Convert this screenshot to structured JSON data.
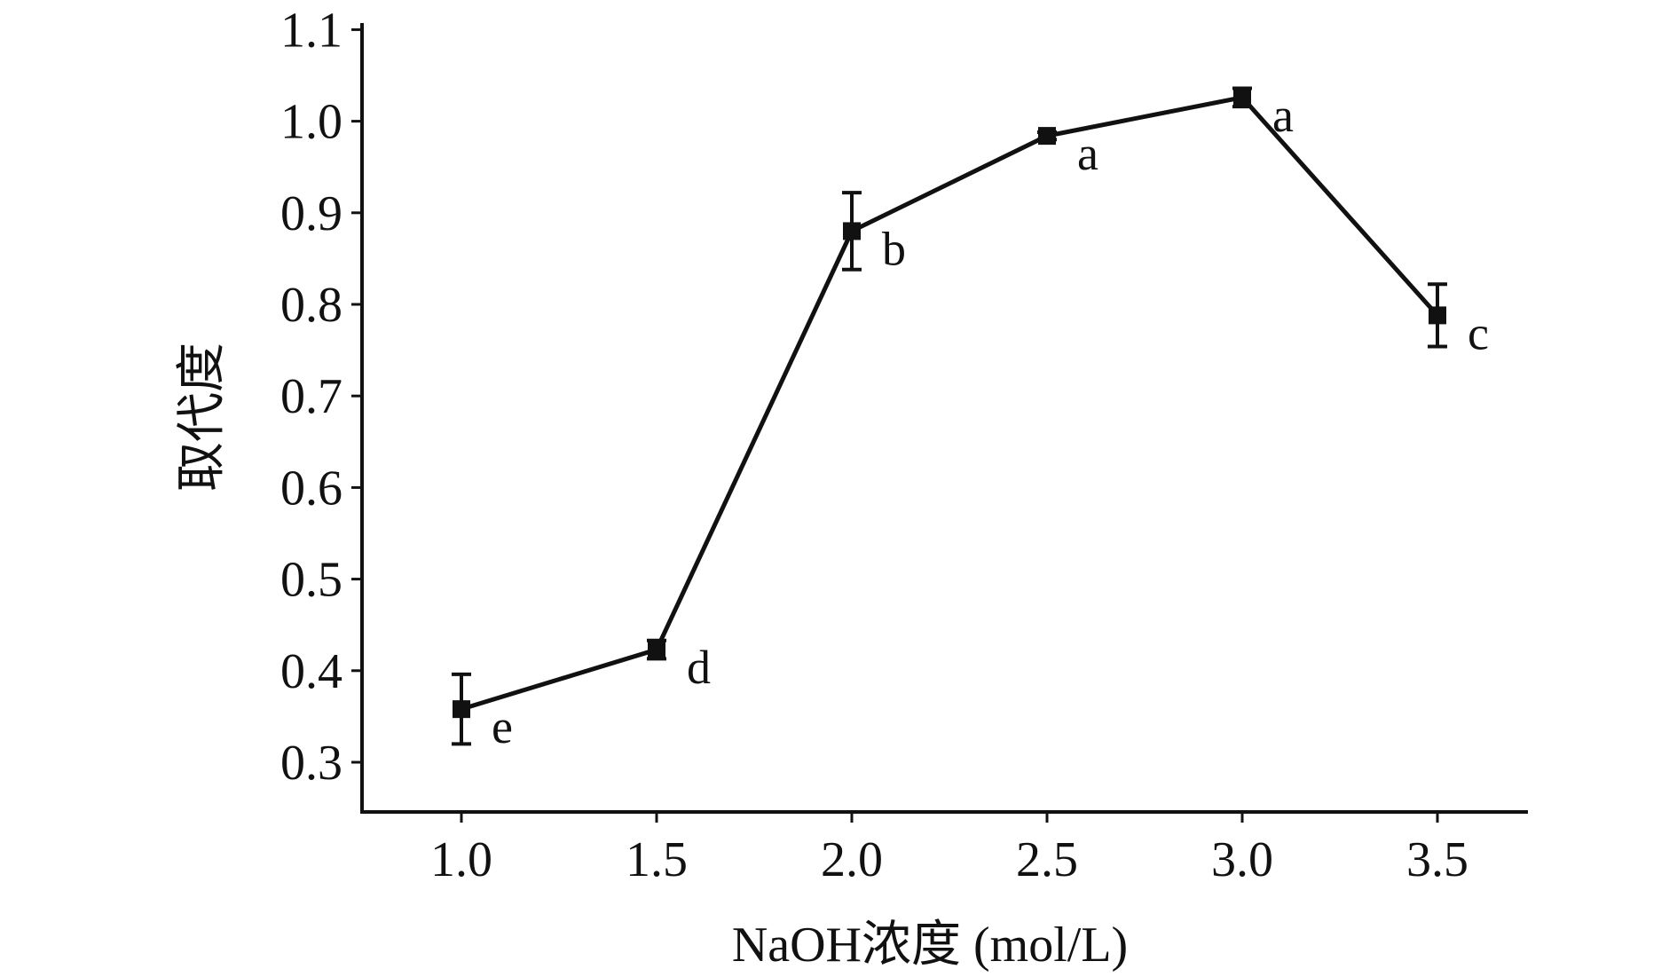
{
  "chart_data": {
    "type": "line",
    "title": "",
    "xlabel": "NaOH浓度 (mol/L)",
    "ylabel": "取代度",
    "x": [
      1.0,
      1.5,
      2.0,
      2.5,
      3.0,
      3.5
    ],
    "x_tick_labels": [
      "1.0",
      "1.5",
      "2.0",
      "2.5",
      "3.0",
      "3.5"
    ],
    "y_tick_labels": [
      "0.3",
      "0.4",
      "0.5",
      "0.6",
      "0.7",
      "0.8",
      "0.9",
      "1.0",
      "1.1"
    ],
    "xlim": [
      0.75,
      3.75
    ],
    "ylim": [
      0.25,
      1.11
    ],
    "grid": false,
    "series": [
      {
        "values": [
          0.358,
          0.423,
          0.88,
          0.984,
          1.026,
          0.788
        ],
        "error": [
          0.038,
          0.01,
          0.042,
          0.004,
          0.01,
          0.034
        ],
        "significance_letters": [
          "e",
          "d",
          "b",
          "a",
          "a",
          "c"
        ]
      }
    ],
    "colors": {
      "line": "#111111",
      "marker": "#111111",
      "axis": "#111111"
    }
  }
}
